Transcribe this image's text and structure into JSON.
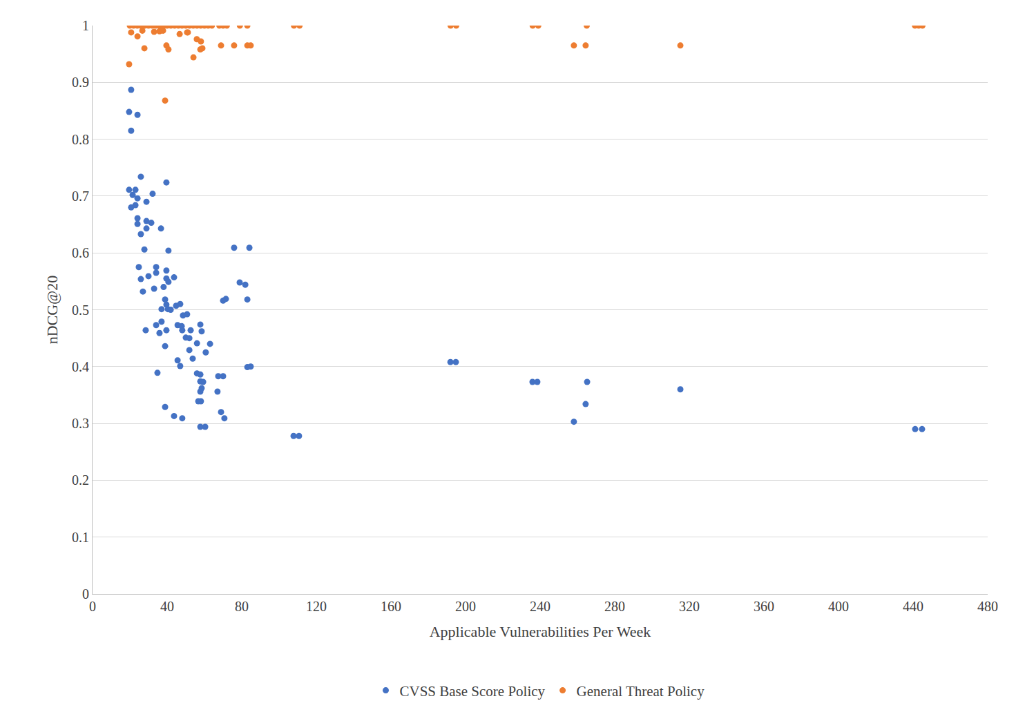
{
  "chart_data": {
    "type": "scatter",
    "x_label": "Applicable Vulnerabilities Per Week",
    "y_label": "nDCG@20",
    "xlim": [
      0,
      480
    ],
    "xticks": [
      0,
      40,
      80,
      120,
      160,
      200,
      240,
      280,
      320,
      360,
      400,
      440,
      480
    ],
    "ylim": [
      0,
      1
    ],
    "yticks": [
      0,
      0.1,
      0.2,
      0.3,
      0.4,
      0.5,
      0.6,
      0.7,
      0.8,
      0.9,
      1
    ],
    "grid": true,
    "legend": "bottom",
    "marker": "circle",
    "series": [
      {
        "name": "CVSS Base Score Policy",
        "color": "#4472c4",
        "x": [
          20.7,
          19.6,
          24.1,
          20.7,
          25.9,
          39.6,
          19.6,
          23,
          21.5,
          24.1,
          32.2,
          28.9,
          23,
          20.7,
          24.1,
          28.9,
          31.5,
          24.1,
          36.7,
          28.9,
          25.9,
          27.8,
          40.7,
          75.9,
          84.1,
          24.8,
          34.1,
          39.6,
          34.1,
          30,
          25.9,
          43.7,
          39.6,
          40.7,
          78.9,
          81.9,
          38.1,
          33,
          27,
          38.9,
          39.6,
          47,
          44.8,
          71.5,
          70,
          83,
          37,
          40.4,
          41.9,
          50.7,
          48.5,
          57.8,
          45.6,
          37,
          34.1,
          48.1,
          58.5,
          47.8,
          39.6,
          28.5,
          35.9,
          52.6,
          50,
          51.9,
          56,
          63,
          38.9,
          51.9,
          60.7,
          53.7,
          45.6,
          47,
          84.8,
          83,
          34.8,
          56,
          57.8,
          67.4,
          70,
          57.8,
          59.3,
          57.8,
          67,
          58.5,
          56.7,
          58.1,
          38.9,
          68.9,
          43.7,
          48.1,
          70.7,
          57.8,
          60.4,
          107.8,
          110.7,
          191.9,
          194.8,
          235.9,
          238.5,
          265.2,
          264.4,
          258.1,
          315.2,
          441.1,
          444.8
        ],
        "values": [
          0.887,
          0.848,
          0.843,
          0.815,
          0.734,
          0.724,
          0.711,
          0.711,
          0.702,
          0.696,
          0.704,
          0.69,
          0.684,
          0.68,
          0.661,
          0.656,
          0.653,
          0.651,
          0.643,
          0.643,
          0.633,
          0.606,
          0.604,
          0.609,
          0.609,
          0.575,
          0.575,
          0.569,
          0.565,
          0.559,
          0.554,
          0.557,
          0.555,
          0.549,
          0.548,
          0.544,
          0.54,
          0.537,
          0.532,
          0.518,
          0.509,
          0.51,
          0.507,
          0.519,
          0.516,
          0.518,
          0.501,
          0.501,
          0.5,
          0.492,
          0.49,
          0.474,
          0.473,
          0.479,
          0.473,
          0.464,
          0.462,
          0.471,
          0.464,
          0.464,
          0.459,
          0.464,
          0.451,
          0.45,
          0.441,
          0.44,
          0.436,
          0.429,
          0.425,
          0.414,
          0.411,
          0.401,
          0.4,
          0.399,
          0.389,
          0.388,
          0.386,
          0.383,
          0.383,
          0.374,
          0.373,
          0.356,
          0.356,
          0.362,
          0.339,
          0.339,
          0.329,
          0.32,
          0.313,
          0.309,
          0.309,
          0.294,
          0.294,
          0.278,
          0.278,
          0.408,
          0.408,
          0.373,
          0.373,
          0.373,
          0.334,
          0.303,
          0.36,
          0.29,
          0.29
        ]
      },
      {
        "name": "General Threat Policy",
        "color": "#ed7d31",
        "x": [
          20,
          22,
          24,
          26,
          28,
          30,
          32,
          34,
          36,
          38,
          40,
          42,
          44,
          46,
          48,
          50,
          52,
          54,
          56,
          58,
          60,
          62,
          64,
          68,
          70,
          72,
          79,
          83,
          108,
          111,
          192,
          195,
          236,
          239,
          265,
          441,
          443,
          445,
          19.6,
          20.7,
          24.1,
          27.8,
          33,
          35.9,
          26.7,
          38.9,
          39.6,
          40.7,
          46.7,
          51.1,
          54.1,
          55.9,
          58.1,
          58.9,
          57.8,
          68.9,
          75.9,
          83,
          84.8,
          258.1,
          264.4,
          315.2,
          50.7,
          37.8
        ],
        "values": [
          1,
          1,
          1,
          1,
          1,
          1,
          1,
          1,
          1,
          1,
          1,
          1,
          1,
          1,
          1,
          1,
          1,
          1,
          1,
          1,
          1,
          1,
          1,
          1,
          1,
          1,
          1,
          1,
          1,
          1,
          1,
          1,
          1,
          1,
          1,
          1,
          1,
          1,
          0.932,
          0.988,
          0.981,
          0.96,
          0.989,
          0.99,
          0.991,
          0.868,
          0.965,
          0.958,
          0.985,
          0.988,
          0.944,
          0.976,
          0.972,
          0.96,
          0.958,
          0.965,
          0.965,
          0.965,
          0.965,
          0.965,
          0.965,
          0.965,
          0.988,
          0.991
        ]
      }
    ]
  }
}
